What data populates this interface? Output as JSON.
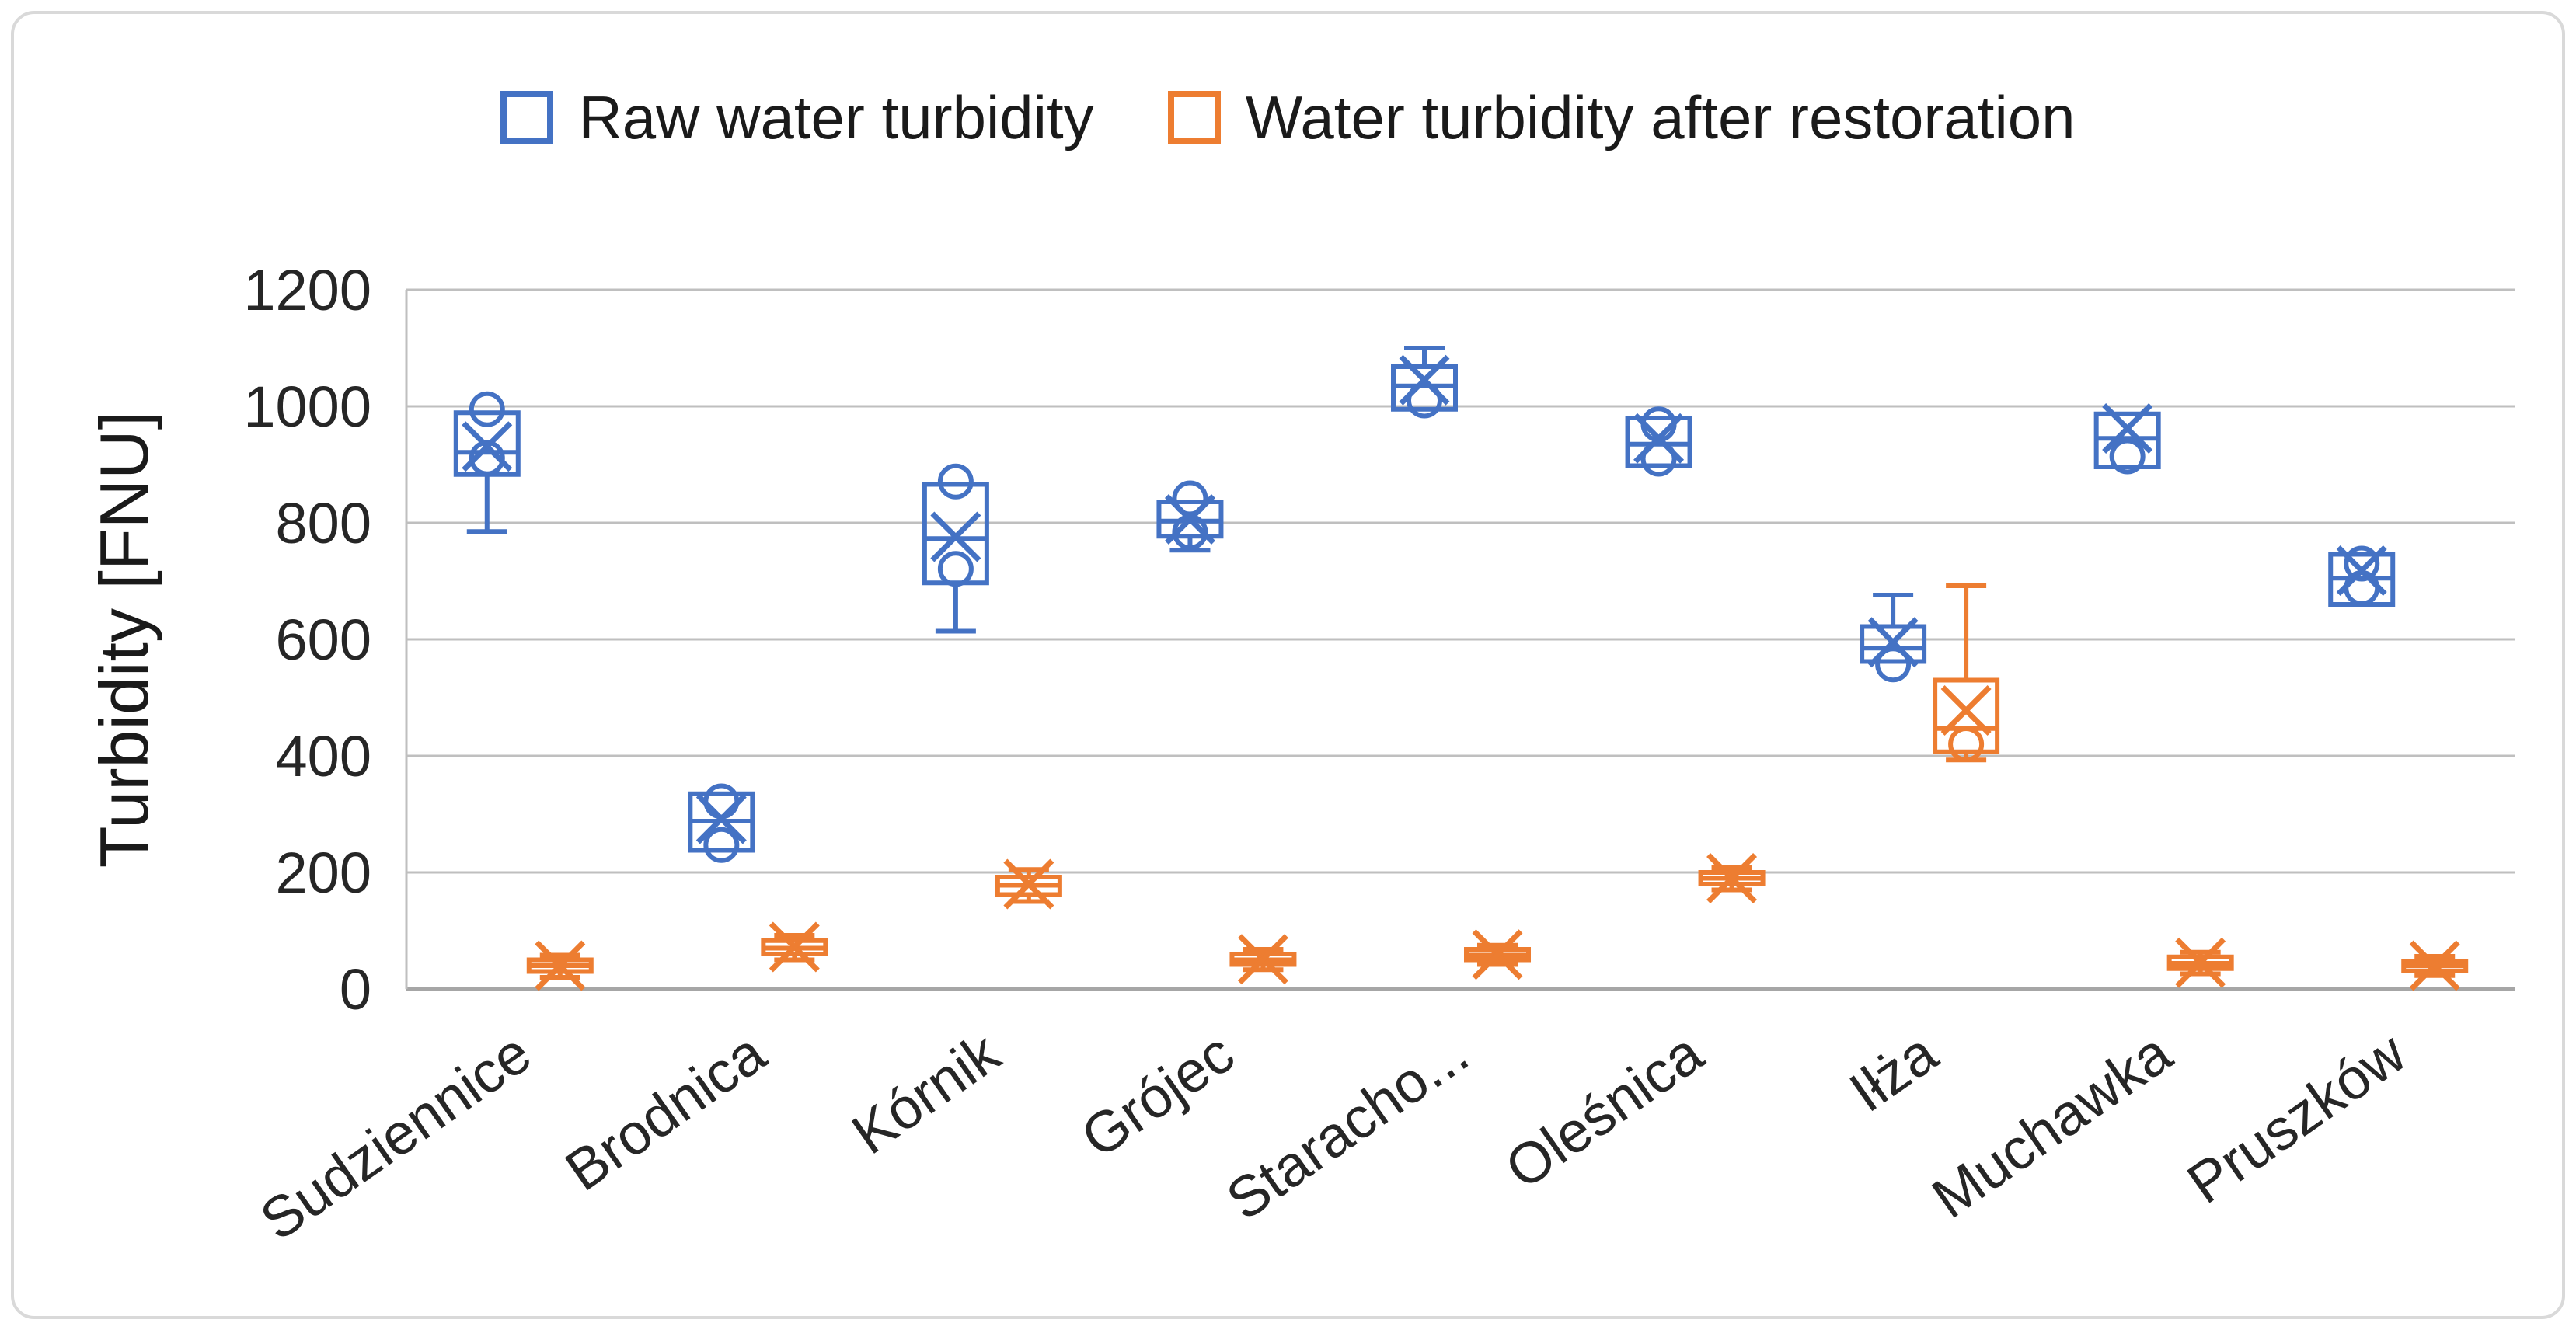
{
  "legend": {
    "items": [
      {
        "label": "Raw water turbidity",
        "color": "#4472C4"
      },
      {
        "label": "Water turbidity after restoration",
        "color": "#ED7D31"
      }
    ]
  },
  "chart_data": {
    "type": "boxplot",
    "title": "",
    "xlabel": "",
    "ylabel": "Turbidity [FNU]",
    "ylim": [
      0,
      1200
    ],
    "yticks": [
      0,
      200,
      400,
      600,
      800,
      1000,
      1200
    ],
    "grid": "horizontal",
    "legend_position": "top",
    "categories": [
      "Sudziennice",
      "Brodnica",
      "Kórnik",
      "Grójec",
      "Staracho...",
      "Oleśnica",
      "Iłża",
      "Muchawka",
      "Pruszków"
    ],
    "series": [
      {
        "name": "Raw water turbidity",
        "color": "#4472C4",
        "boxes": [
          {
            "whisker_low": 785,
            "q1": 883,
            "median": 921,
            "q3": 989,
            "whisker_high": 989,
            "mean": 931,
            "outliers": [
              995,
              911
            ]
          },
          {
            "whisker_low": 238,
            "q1": 238,
            "median": 288,
            "q3": 335,
            "whisker_high": 335,
            "mean": 292,
            "outliers": [
              322,
              247
            ]
          },
          {
            "whisker_low": 614,
            "q1": 697,
            "median": 773,
            "q3": 866,
            "whisker_high": 866,
            "mean": 776,
            "outliers": [
              871,
              721
            ]
          },
          {
            "whisker_low": 753,
            "q1": 777,
            "median": 803,
            "q3": 836,
            "whisker_high": 836,
            "mean": 806,
            "outliers": [
              842,
              784
            ]
          },
          {
            "whisker_low": 995,
            "q1": 995,
            "median": 1035,
            "q3": 1068,
            "whisker_high": 1100,
            "mean": 1045,
            "outliers": [
              1010
            ]
          },
          {
            "whisker_low": 898,
            "q1": 898,
            "median": 935,
            "q3": 980,
            "whisker_high": 980,
            "mean": 945,
            "outliers": [
              969,
              910
            ]
          },
          {
            "whisker_low": 562,
            "q1": 562,
            "median": 585,
            "q3": 622,
            "whisker_high": 676,
            "mean": 595,
            "outliers": [
              557
            ]
          },
          {
            "whisker_low": 896,
            "q1": 896,
            "median": 945,
            "q3": 987,
            "whisker_high": 987,
            "mean": 962,
            "outliers": [
              914
            ]
          },
          {
            "whisker_low": 660,
            "q1": 660,
            "median": 705,
            "q3": 746,
            "whisker_high": 746,
            "mean": 718,
            "outliers": [
              730,
              688
            ]
          }
        ]
      },
      {
        "name": "Water turbidity after restoration",
        "color": "#ED7D31",
        "boxes": [
          {
            "whisker_low": 20,
            "q1": 30,
            "median": 40,
            "q3": 50,
            "whisker_high": 58,
            "mean": 40,
            "outliers": []
          },
          {
            "whisker_low": 50,
            "q1": 60,
            "median": 70,
            "q3": 83,
            "whisker_high": 92,
            "mean": 72,
            "outliers": []
          },
          {
            "whisker_low": 150,
            "q1": 162,
            "median": 178,
            "q3": 192,
            "whisker_high": 205,
            "mean": 180,
            "outliers": []
          },
          {
            "whisker_low": 33,
            "q1": 42,
            "median": 50,
            "q3": 60,
            "whisker_high": 68,
            "mean": 51,
            "outliers": []
          },
          {
            "whisker_low": 42,
            "q1": 50,
            "median": 58,
            "q3": 68,
            "whisker_high": 75,
            "mean": 59,
            "outliers": []
          },
          {
            "whisker_low": 170,
            "q1": 180,
            "median": 190,
            "q3": 200,
            "whisker_high": 208,
            "mean": 190,
            "outliers": []
          },
          {
            "whisker_low": 393,
            "q1": 407,
            "median": 447,
            "q3": 530,
            "whisker_high": 692,
            "mean": 478,
            "outliers": [
              420
            ]
          },
          {
            "whisker_low": 26,
            "q1": 35,
            "median": 44,
            "q3": 55,
            "whisker_high": 63,
            "mean": 45,
            "outliers": []
          },
          {
            "whisker_low": 23,
            "q1": 31,
            "median": 40,
            "q3": 48,
            "whisker_high": 56,
            "mean": 40,
            "outliers": []
          }
        ]
      }
    ]
  }
}
